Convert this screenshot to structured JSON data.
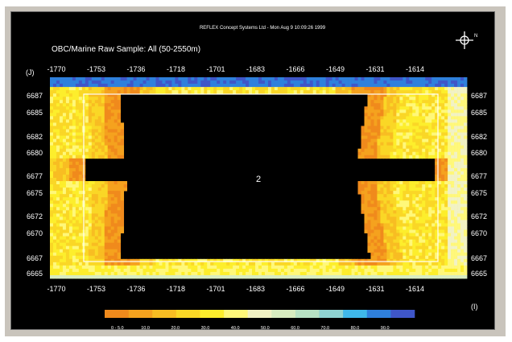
{
  "header": {
    "title": "REFLEX Concept Systems Ltd - Mon Aug 9 10:09:26 1999",
    "subtitle": "OBC/Marine Raw Sample: All (50-2550m)"
  },
  "axis": {
    "y_unit_label": "(J)",
    "x_unit_label": "(I)",
    "north_label": "N"
  },
  "chart_data": {
    "type": "heatmap",
    "x_tick_labels": [
      "-1770",
      "-1753",
      "-1736",
      "-1718",
      "-1701",
      "-1683",
      "-1666",
      "-1649",
      "-1631",
      "-1614"
    ],
    "y_tick_labels": [
      "6687",
      "6685",
      "6682",
      "6680",
      "6677",
      "6675",
      "6672",
      "6670",
      "6667",
      "6665"
    ],
    "x_range": [
      -1770,
      -1604
    ],
    "y_range": [
      6664,
      6688
    ],
    "center_label": "2",
    "legend_labels": [
      "0 - 5.0",
      "10.0",
      "20.0",
      "30.0",
      "40.0",
      "50.0",
      "60.0",
      "70.0",
      "80.0",
      "90.0"
    ],
    "palette": [
      "#f08a1c",
      "#f5a21e",
      "#f8bd22",
      "#fad726",
      "#fdee2c",
      "#fff87a",
      "#f2f2c4",
      "#d8ecc0",
      "#b8e2c4",
      "#8fd3d2",
      "#3fb8ea",
      "#2f80dc",
      "#3f56c8"
    ]
  }
}
